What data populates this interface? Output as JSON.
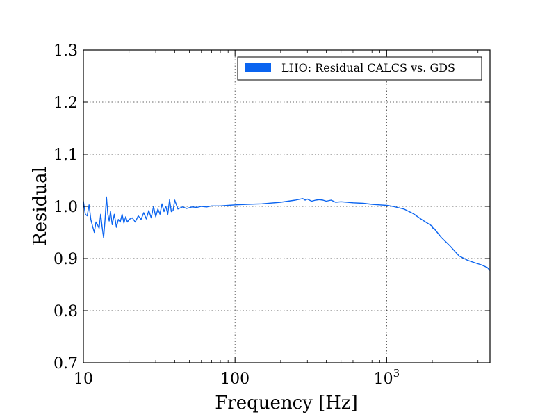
{
  "chart_data": {
    "type": "line",
    "xlabel": "Frequency [Hz]",
    "ylabel": "Residual",
    "x_scale": "log",
    "xlim": [
      10,
      4800
    ],
    "ylim": [
      0.7,
      1.3
    ],
    "grid": true,
    "legend_position": "top-right",
    "x_ticks": [
      {
        "value": 10,
        "label": "10",
        "sup": ""
      },
      {
        "value": 100,
        "label": "100",
        "sup": ""
      },
      {
        "value": 1000,
        "label": "10",
        "sup": "3"
      }
    ],
    "y_ticks": [
      {
        "value": 0.7,
        "label": "0.7"
      },
      {
        "value": 0.8,
        "label": "0.8"
      },
      {
        "value": 0.9,
        "label": "0.9"
      },
      {
        "value": 1.0,
        "label": "1.0"
      },
      {
        "value": 1.1,
        "label": "1.1"
      },
      {
        "value": 1.2,
        "label": "1.2"
      },
      {
        "value": 1.3,
        "label": "1.3"
      }
    ],
    "series": [
      {
        "name": "LHO: Residual CALCS vs. GDS",
        "color": "#0a64f0",
        "x": [
          10,
          10.3,
          10.6,
          10.9,
          11.2,
          11.5,
          11.8,
          12.1,
          12.4,
          12.7,
          13.0,
          13.3,
          13.6,
          13.9,
          14.2,
          14.5,
          14.8,
          15.1,
          15.5,
          16,
          16.5,
          17,
          17.5,
          18,
          18.5,
          19,
          19.5,
          20,
          21,
          22,
          23,
          24,
          25,
          26,
          27,
          28,
          29,
          30,
          31,
          32,
          33,
          34,
          35,
          36,
          37,
          38,
          39,
          40,
          42,
          45,
          48,
          52,
          56,
          60,
          65,
          70,
          80,
          90,
          100,
          120,
          150,
          200,
          250,
          280,
          290,
          300,
          320,
          340,
          360,
          380,
          400,
          430,
          460,
          500,
          550,
          600,
          700,
          800,
          900,
          1000,
          1100,
          1300,
          1500,
          1700,
          2000,
          2020,
          2050,
          2300,
          2600,
          3000,
          3400,
          3800,
          4200,
          4600,
          4800
        ],
        "y": [
          1.01,
          0.985,
          0.982,
          1.003,
          0.975,
          0.962,
          0.95,
          0.97,
          0.965,
          0.958,
          0.985,
          0.96,
          0.94,
          0.975,
          1.018,
          0.985,
          0.972,
          0.99,
          0.965,
          0.985,
          0.96,
          0.975,
          0.97,
          0.985,
          0.968,
          0.98,
          0.97,
          0.975,
          0.978,
          0.97,
          0.982,
          0.975,
          0.988,
          0.976,
          0.992,
          0.978,
          1.0,
          0.98,
          0.995,
          0.985,
          1.005,
          0.99,
          1.0,
          0.985,
          1.013,
          0.99,
          0.992,
          1.012,
          0.995,
          0.999,
          0.996,
          0.999,
          0.998,
          1.0,
          0.999,
          1.001,
          1.001,
          1.002,
          1.003,
          1.004,
          1.005,
          1.008,
          1.012,
          1.015,
          1.012,
          1.014,
          1.01,
          1.012,
          1.013,
          1.012,
          1.01,
          1.012,
          1.008,
          1.009,
          1.008,
          1.007,
          1.006,
          1.004,
          1.003,
          1.002,
          1.0,
          0.995,
          0.986,
          0.975,
          0.962,
          0.958,
          0.958,
          0.94,
          0.925,
          0.905,
          0.897,
          0.892,
          0.888,
          0.883,
          0.877
        ]
      }
    ]
  }
}
